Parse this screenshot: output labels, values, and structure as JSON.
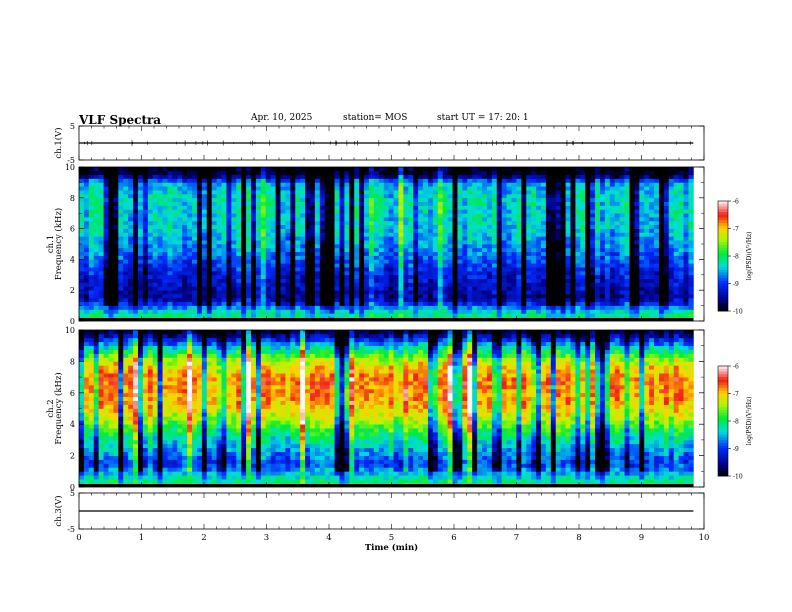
{
  "header": {
    "title": "VLF Spectra",
    "date": "Apr. 10, 2025",
    "station": "station= MOS",
    "start_ut": "start  UT  =   17: 20: 1"
  },
  "chart_data": {
    "type": "heatmap",
    "xlabel": "Time  (min)",
    "xlim": [
      0,
      10
    ],
    "xticks": [
      "0",
      "1",
      "2",
      "3",
      "4",
      "5",
      "6",
      "7",
      "8",
      "9",
      "10"
    ],
    "x_end_data": 9.83,
    "panels": [
      {
        "id": "ch1-waveform",
        "type": "line",
        "ylabel": "ch.1(V)",
        "ylim": [
          -5,
          5
        ],
        "yticks": [
          "5",
          "-5"
        ],
        "baseline": 0
      },
      {
        "id": "ch1-spectrogram",
        "type": "heatmap",
        "ylabel_line1": "ch.1",
        "ylabel_line2": "Frequency  (kHz)",
        "ylim": [
          0,
          10
        ],
        "yticks": [
          "0",
          "2",
          "4",
          "6",
          "8",
          "10"
        ],
        "profile_log_psd": [
          [
            0,
            -8
          ],
          [
            0.5,
            -8.2
          ],
          [
            1.5,
            -9.5
          ],
          [
            3,
            -9.2
          ],
          [
            4.5,
            -8.7
          ],
          [
            6,
            -8.4
          ],
          [
            8,
            -8.3
          ],
          [
            9,
            -8.6
          ],
          [
            9.5,
            -9.8
          ],
          [
            10,
            -10
          ]
        ],
        "colorbar": {
          "label": "log(PSD)(V²/Hz)",
          "range": [
            -10,
            -6
          ],
          "ticks": [
            "-6",
            "-7",
            "-8",
            "-9",
            "-10"
          ]
        }
      },
      {
        "id": "ch2-spectrogram",
        "type": "heatmap",
        "ylabel_line1": "ch.2",
        "ylabel_line2": "Frequency  (kHz)",
        "ylim": [
          0,
          10
        ],
        "yticks": [
          "0",
          "2",
          "4",
          "6",
          "8",
          "10"
        ],
        "profile_log_psd": [
          [
            0,
            -7.8
          ],
          [
            0.5,
            -8.2
          ],
          [
            1.5,
            -9.0
          ],
          [
            3,
            -8.3
          ],
          [
            4.5,
            -7.3
          ],
          [
            5.5,
            -6.9
          ],
          [
            7,
            -6.8
          ],
          [
            8,
            -7.3
          ],
          [
            9,
            -8.5
          ],
          [
            9.7,
            -9.6
          ],
          [
            10,
            -10
          ]
        ],
        "colorbar": {
          "label": "log(PSD)(V²/Hz)",
          "range": [
            -10,
            -6
          ],
          "ticks": [
            "-6",
            "-7",
            "-8",
            "-9",
            "-10"
          ]
        }
      },
      {
        "id": "ch3-waveform",
        "type": "line",
        "ylabel": "ch.3(V)",
        "ylim": [
          -5,
          5
        ],
        "yticks": [
          "5",
          "-5"
        ],
        "baseline": 0
      }
    ]
  }
}
